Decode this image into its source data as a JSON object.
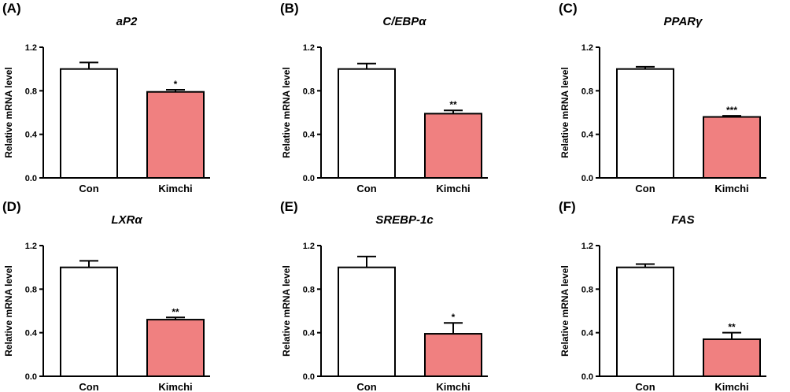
{
  "chart_data": [
    {
      "type": "bar",
      "panel": "(A)",
      "title": "aP2",
      "ylabel": "Relative mRNA level",
      "categories": [
        "Con",
        "Kimchi"
      ],
      "values": [
        1.0,
        0.79
      ],
      "errors": [
        0.06,
        0.02
      ],
      "significance": [
        "",
        "*"
      ],
      "ylim": [
        0,
        1.2
      ],
      "yticks": [
        "0.0",
        "0.4",
        "0.8",
        "1.2"
      ]
    },
    {
      "type": "bar",
      "panel": "(B)",
      "title": "C/EBPα",
      "ylabel": "Relative mRNA level",
      "categories": [
        "Con",
        "Kimchi"
      ],
      "values": [
        1.0,
        0.59
      ],
      "errors": [
        0.05,
        0.03
      ],
      "significance": [
        "",
        "**"
      ],
      "ylim": [
        0,
        1.2
      ],
      "yticks": [
        "0.0",
        "0.4",
        "0.8",
        "1.2"
      ]
    },
    {
      "type": "bar",
      "panel": "(C)",
      "title": "PPARγ",
      "ylabel": "Relative mRNA level",
      "categories": [
        "Con",
        "Kimchi"
      ],
      "values": [
        1.0,
        0.56
      ],
      "errors": [
        0.02,
        0.01
      ],
      "significance": [
        "",
        "***"
      ],
      "ylim": [
        0,
        1.2
      ],
      "yticks": [
        "0.0",
        "0.4",
        "0.8",
        "1.2"
      ]
    },
    {
      "type": "bar",
      "panel": "(D)",
      "title": "LXRα",
      "ylabel": "Relative mRNA level",
      "categories": [
        "Con",
        "Kimchi"
      ],
      "values": [
        1.0,
        0.52
      ],
      "errors": [
        0.06,
        0.02
      ],
      "significance": [
        "",
        "**"
      ],
      "ylim": [
        0,
        1.2
      ],
      "yticks": [
        "0.0",
        "0.4",
        "0.8",
        "1.2"
      ]
    },
    {
      "type": "bar",
      "panel": "(E)",
      "title": "SREBP-1c",
      "ylabel": "Relative mRNA level",
      "categories": [
        "Con",
        "Kimchi"
      ],
      "values": [
        1.0,
        0.39
      ],
      "errors": [
        0.1,
        0.1
      ],
      "significance": [
        "",
        "*"
      ],
      "ylim": [
        0,
        1.2
      ],
      "yticks": [
        "0.0",
        "0.4",
        "0.8",
        "1.2"
      ]
    },
    {
      "type": "bar",
      "panel": "(F)",
      "title": "FAS",
      "ylabel": "Relative mRNA level",
      "categories": [
        "Con",
        "Kimchi"
      ],
      "values": [
        1.0,
        0.34
      ],
      "errors": [
        0.03,
        0.06
      ],
      "significance": [
        "",
        "**"
      ],
      "ylim": [
        0,
        1.2
      ],
      "yticks": [
        "0.0",
        "0.4",
        "0.8",
        "1.2"
      ]
    }
  ],
  "colors": {
    "control_fill": "#ffffff",
    "treatment_fill": "#f08080",
    "stroke": "#000000"
  }
}
